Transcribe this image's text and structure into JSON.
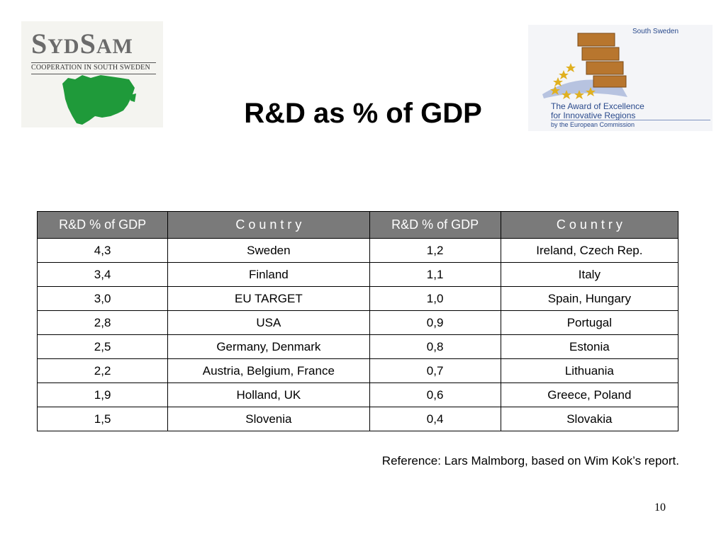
{
  "logo_left": {
    "name_big_1": "S",
    "name_small_1": "YD",
    "name_big_2": "S",
    "name_small_2": "AM",
    "tagline": "COOPERATION IN SOUTH SWEDEN",
    "map_color": "#1f9a3a"
  },
  "logo_right": {
    "region": "South Sweden",
    "line1": "The Award of Excellence",
    "line2": "for Innovative Regions",
    "line3": "by the European Commission",
    "brick_color": "#b8762e",
    "star_color": "#e0b020"
  },
  "title": "R&D as % of GDP",
  "table": {
    "headers": [
      "R&D % of GDP",
      "C o u n t r y",
      "R&D % of GDP",
      "C o u n t r y"
    ],
    "header_bg": "#7a7a7a",
    "rows": [
      [
        "4,3",
        "Sweden",
        "1,2",
        "Ireland, Czech Rep."
      ],
      [
        "3,4",
        "Finland",
        "1,1",
        "Italy"
      ],
      [
        "3,0",
        "EU TARGET",
        "1,0",
        "Spain, Hungary"
      ],
      [
        "2,8",
        "USA",
        "0,9",
        "Portugal"
      ],
      [
        "2,5",
        "Germany, Denmark",
        "0,8",
        "Estonia"
      ],
      [
        "2,2",
        "Austria, Belgium, France",
        "0,7",
        "Lithuania"
      ],
      [
        "1,9",
        "Holland, UK",
        "0,6",
        "Greece, Poland"
      ],
      [
        "1,5",
        "Slovenia",
        "0,4",
        "Slovakia"
      ]
    ]
  },
  "reference": "Reference: Lars Malmborg, based on Wim Kok’s report.",
  "slide_number": "10"
}
